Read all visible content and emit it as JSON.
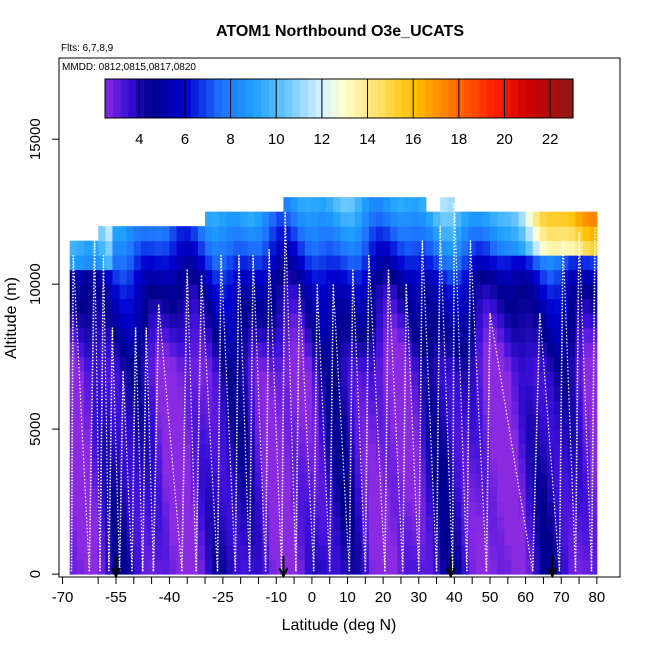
{
  "chart_data": {
    "type": "heatmap",
    "title": "ATOM1 Northbound O3e_UCATS",
    "flights_note": "Flts: 6,7,8,9",
    "dates_note": "MMDD: 0812,0815,0817,0820",
    "xlabel": "Latitude (deg N)",
    "ylabel": "Altitude (m)",
    "xlim": [
      -70,
      85
    ],
    "ylim": [
      0,
      17500
    ],
    "x_ticks": [
      -70,
      -55,
      -40,
      -25,
      -10,
      0,
      10,
      20,
      30,
      40,
      50,
      60,
      70,
      80
    ],
    "x_tick_labels": [
      "-70",
      "-55",
      "-40",
      "-25",
      "-10",
      "0",
      "10",
      "20",
      "30",
      "40",
      "50",
      "60",
      "70",
      "80"
    ],
    "x_minor_ticks": [
      -60,
      -50,
      -45,
      -35,
      -30,
      -20,
      -15,
      -5,
      5,
      15,
      25,
      35,
      45,
      55,
      65,
      75
    ],
    "y_ticks": [
      0,
      5000,
      10000,
      15000
    ],
    "y_tick_labels": [
      "0",
      "5000",
      "10000",
      "15000"
    ],
    "colorbar": {
      "range": [
        2.5,
        23
      ],
      "ticks": [
        4,
        6,
        8,
        10,
        12,
        14,
        16,
        18,
        20,
        22
      ],
      "tick_labels": [
        "4",
        "6",
        "8",
        "10",
        "12",
        "14",
        "16",
        "18",
        "20",
        "22"
      ],
      "stops": [
        {
          "value": 2.5,
          "color": "#8a2be2"
        },
        {
          "value": 3.5,
          "color": "#3a0fd8"
        },
        {
          "value": 4.5,
          "color": "#00008b"
        },
        {
          "value": 6.0,
          "color": "#0000d0"
        },
        {
          "value": 7.5,
          "color": "#1e6fff"
        },
        {
          "value": 9.0,
          "color": "#1ea0ff"
        },
        {
          "value": 10.5,
          "color": "#6cc8ff"
        },
        {
          "value": 12.0,
          "color": "#d8f2ff"
        },
        {
          "value": 13.0,
          "color": "#ffffcc"
        },
        {
          "value": 14.5,
          "color": "#ffe066"
        },
        {
          "value": 16.0,
          "color": "#ffc000"
        },
        {
          "value": 17.5,
          "color": "#ff8000"
        },
        {
          "value": 19.5,
          "color": "#ff2000"
        },
        {
          "value": 21.0,
          "color": "#d00000"
        },
        {
          "value": 23.0,
          "color": "#8b1a1a"
        }
      ]
    },
    "grid_alt_levels": [
      0,
      500,
      1000,
      1500,
      2000,
      2500,
      3000,
      3500,
      4000,
      4500,
      5000,
      5500,
      6000,
      6500,
      7000,
      7500,
      8000,
      8500,
      9000,
      9500,
      10000,
      10500,
      11000,
      11500,
      12000,
      12500,
      13000
    ],
    "coverage_top_m": [
      {
        "lat_from": -68,
        "lat_to": -61,
        "top": 11500
      },
      {
        "lat_from": -61,
        "lat_to": -51,
        "top": 12000
      },
      {
        "lat_from": -51,
        "lat_to": -30,
        "top": 12000
      },
      {
        "lat_from": -30,
        "lat_to": -9,
        "top": 12500
      },
      {
        "lat_from": -9,
        "lat_to": 32,
        "top": 13000
      },
      {
        "lat_from": 32,
        "lat_to": 36,
        "top": 12500
      },
      {
        "lat_from": 36,
        "lat_to": 40,
        "top": 13000
      },
      {
        "lat_from": 40,
        "lat_to": 80,
        "top": 12500
      }
    ],
    "markers_lat": [
      -55,
      -8,
      39,
      67.5
    ],
    "profiles": [
      {
        "lat_bottom": -67.5,
        "lat_top": -67.0,
        "alt_top": 11000
      },
      {
        "lat_bottom": -62.5,
        "lat_top": -61.0,
        "alt_top": 11500
      },
      {
        "lat_bottom": -59.5,
        "lat_top": -58.5,
        "alt_top": 11000
      },
      {
        "lat_bottom": -57.0,
        "lat_top": -56.0,
        "alt_top": 8500
      },
      {
        "lat_bottom": -54.0,
        "lat_top": -53.0,
        "alt_top": 7000
      },
      {
        "lat_bottom": -50.5,
        "lat_top": -49.5,
        "alt_top": 8500
      },
      {
        "lat_bottom": -47.5,
        "lat_top": -46.5,
        "alt_top": 8500
      },
      {
        "lat_bottom": -44.5,
        "lat_top": -43.0,
        "alt_top": 9300
      },
      {
        "lat_bottom": -36.5,
        "lat_top": -35.0,
        "alt_top": 10500
      },
      {
        "lat_bottom": -32.5,
        "lat_top": -31.0,
        "alt_top": 10300
      },
      {
        "lat_bottom": -26.5,
        "lat_top": -25.5,
        "alt_top": 11000
      },
      {
        "lat_bottom": -21.5,
        "lat_top": -20.5,
        "alt_top": 11000
      },
      {
        "lat_bottom": -17.5,
        "lat_top": -16.5,
        "alt_top": 11000
      },
      {
        "lat_bottom": -13.0,
        "lat_top": -12.0,
        "alt_top": 11200
      },
      {
        "lat_bottom": -8.5,
        "lat_top": -7.5,
        "alt_top": 12500
      },
      {
        "lat_bottom": -4.5,
        "lat_top": -3.5,
        "alt_top": 10000
      },
      {
        "lat_bottom": 0.5,
        "lat_top": 1.5,
        "alt_top": 10000
      },
      {
        "lat_bottom": 5.0,
        "lat_top": 6.0,
        "alt_top": 10000
      },
      {
        "lat_bottom": 10.5,
        "lat_top": 11.5,
        "alt_top": 10500
      },
      {
        "lat_bottom": 15.0,
        "lat_top": 16.0,
        "alt_top": 11000
      },
      {
        "lat_bottom": 20.5,
        "lat_top": 21.5,
        "alt_top": 10500
      },
      {
        "lat_bottom": 25.5,
        "lat_top": 26.5,
        "alt_top": 10000
      },
      {
        "lat_bottom": 30.0,
        "lat_top": 31.0,
        "alt_top": 11500
      },
      {
        "lat_bottom": 35.0,
        "lat_top": 36.0,
        "alt_top": 12000
      },
      {
        "lat_bottom": 39.5,
        "lat_top": 40.0,
        "alt_top": 12800
      },
      {
        "lat_bottom": 43.5,
        "lat_top": 44.5,
        "alt_top": 11500
      },
      {
        "lat_bottom": 49.0,
        "lat_top": 50.0,
        "alt_top": 9000
      },
      {
        "lat_bottom": 62.0,
        "lat_top": 64.0,
        "alt_top": 9000
      },
      {
        "lat_bottom": 69.5,
        "lat_top": 70.5,
        "alt_top": 11500
      },
      {
        "lat_bottom": 74.0,
        "lat_top": 75.0,
        "alt_top": 11800
      },
      {
        "lat_bottom": 78.5,
        "lat_top": 79.5,
        "alt_top": 12000
      }
    ]
  }
}
